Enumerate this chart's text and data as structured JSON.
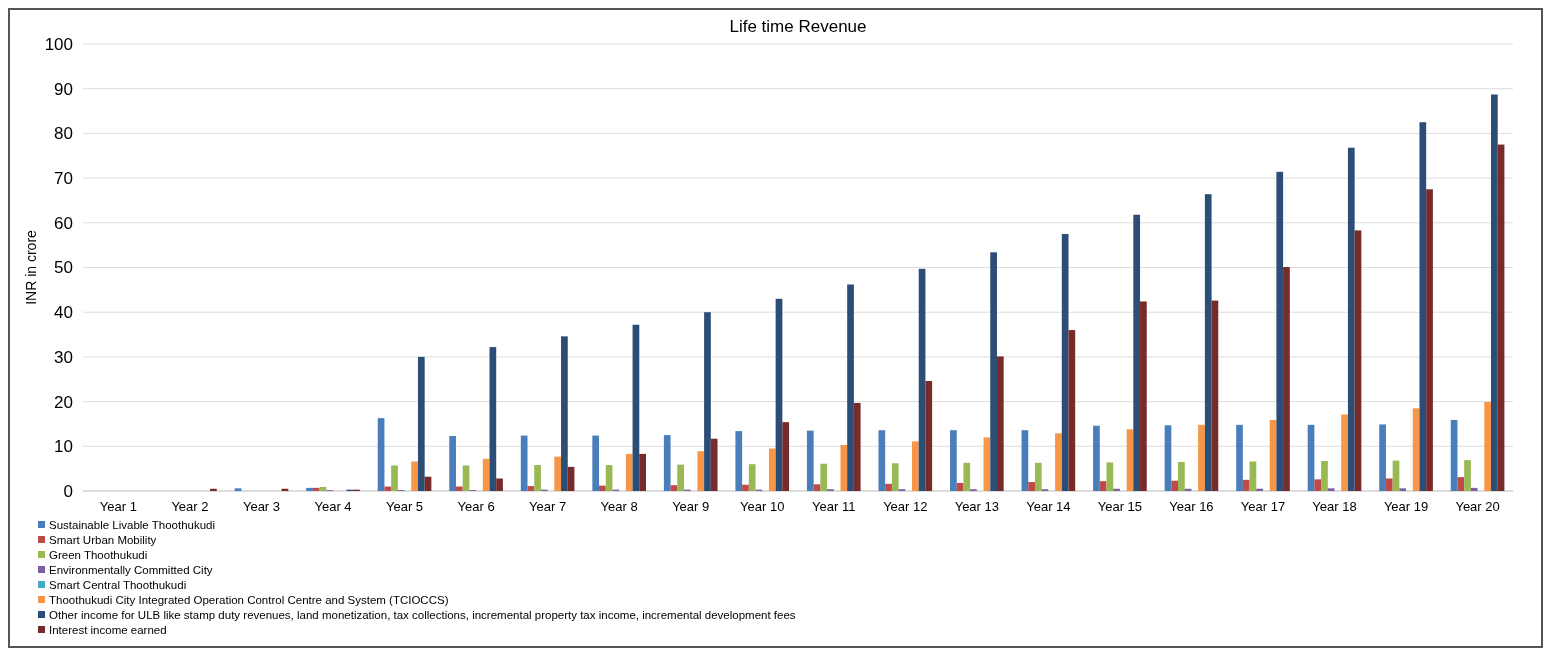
{
  "chart_data": {
    "type": "bar",
    "title": "Life time Revenue",
    "ylabel": "INR in crore",
    "categories": [
      "Year 1",
      "Year 2",
      "Year 3",
      "Year 4",
      "Year 5",
      "Year 6",
      "Year 7",
      "Year 8",
      "Year 9",
      "Year 10",
      "Year 11",
      "Year 12",
      "Year 13",
      "Year 14",
      "Year 15",
      "Year 16",
      "Year 17",
      "Year 18",
      "Year 19",
      "Year 20"
    ],
    "series": [
      {
        "name": "Sustainable Livable Thoothukudi",
        "color": "#4a7ebb",
        "values": [
          0,
          0,
          0.6,
          0.7,
          16.3,
          12.3,
          12.4,
          12.4,
          12.5,
          13.4,
          13.5,
          13.6,
          13.6,
          13.6,
          14.6,
          14.7,
          14.8,
          14.8,
          14.9,
          15.9
        ]
      },
      {
        "name": "Smart Urban Mobility",
        "color": "#be4b48",
        "values": [
          0,
          0,
          0,
          0.7,
          1.0,
          1.0,
          1.1,
          1.2,
          1.3,
          1.4,
          1.5,
          1.6,
          1.8,
          2.0,
          2.2,
          2.3,
          2.5,
          2.6,
          2.8,
          3.1
        ]
      },
      {
        "name": "Green Thoothukudi",
        "color": "#98b954",
        "values": [
          0,
          0,
          0,
          0.9,
          5.7,
          5.7,
          5.8,
          5.8,
          5.9,
          6.0,
          6.1,
          6.2,
          6.3,
          6.3,
          6.4,
          6.5,
          6.6,
          6.7,
          6.8,
          6.9
        ]
      },
      {
        "name": "Environmentally Committed City",
        "color": "#7d60a0",
        "values": [
          0,
          0,
          0,
          0.2,
          0.2,
          0.2,
          0.3,
          0.3,
          0.3,
          0.3,
          0.4,
          0.4,
          0.4,
          0.4,
          0.5,
          0.5,
          0.5,
          0.6,
          0.6,
          0.7
        ]
      },
      {
        "name": "Smart Central Thoothukudi",
        "color": "#46aac5",
        "values": [
          0,
          0,
          0,
          0,
          0,
          0,
          0,
          0,
          0,
          0,
          0,
          0,
          0,
          0,
          0,
          0,
          0,
          0,
          0,
          0
        ]
      },
      {
        "name": "Thoothukudi City Integrated Operation Control Centre and System (TCIOCCS)",
        "color": "#f79646",
        "values": [
          0,
          0,
          0,
          0,
          6.6,
          7.2,
          7.7,
          8.3,
          8.9,
          9.5,
          10.3,
          11.1,
          12.0,
          12.9,
          13.8,
          14.8,
          15.9,
          17.1,
          18.5,
          19.9
        ]
      },
      {
        "name": "Other income for ULB like stamp duty revenues, land monetization, tax collections, incremental property tax income, incremental development fees",
        "color": "#2c4d75",
        "values": [
          0,
          0,
          0,
          0.3,
          30,
          32.2,
          34.6,
          37.2,
          40,
          43,
          46.2,
          49.7,
          53.4,
          57.5,
          61.8,
          66.4,
          71.4,
          76.8,
          82.5,
          88.7
        ]
      },
      {
        "name": "Interest income earned",
        "color": "#772c2a",
        "values": [
          0,
          0.5,
          0.5,
          0.3,
          3.2,
          2.8,
          5.4,
          8.3,
          11.7,
          15.4,
          19.7,
          24.6,
          30.1,
          36,
          42.4,
          42.6,
          50.1,
          58.3,
          67.5,
          77.5
        ]
      }
    ],
    "ylim": [
      0,
      100
    ],
    "yticks": [
      0,
      10,
      20,
      30,
      40,
      50,
      60,
      70,
      80,
      90,
      100
    ],
    "grid": "y",
    "legend": "bottom left"
  }
}
